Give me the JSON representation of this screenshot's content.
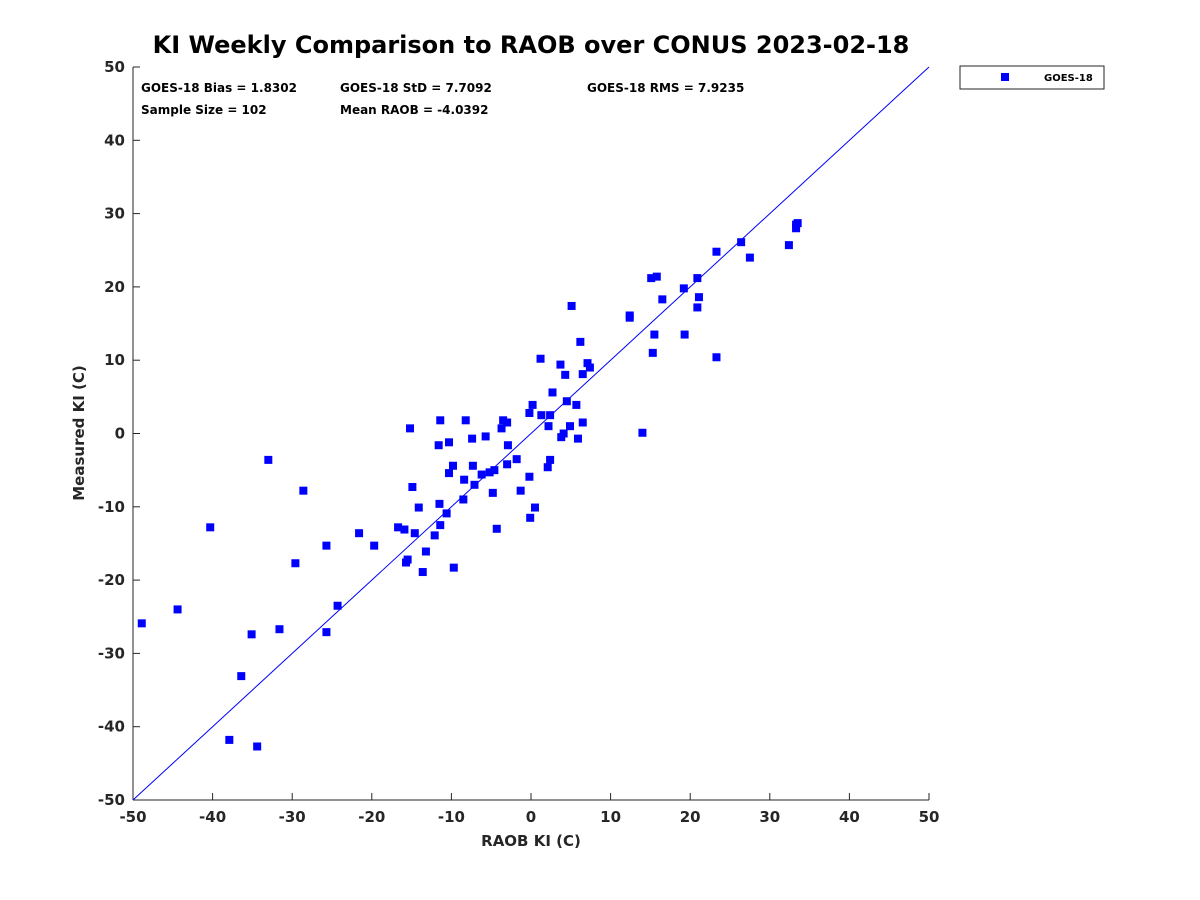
{
  "chart_data": {
    "type": "scatter",
    "title": "KI Weekly Comparison to RAOB over CONUS 2023-02-18",
    "xlabel": "RAOB KI (C)",
    "ylabel": "Measured KI (C)",
    "xlim": [
      -50,
      50
    ],
    "ylim": [
      -50,
      50
    ],
    "xticks": [
      "-50",
      "-40",
      "-30",
      "-20",
      "-10",
      "0",
      "10",
      "20",
      "30",
      "40",
      "50"
    ],
    "yticks": [
      "50",
      "40",
      "30",
      "20",
      "10",
      "0",
      "-10",
      "-20",
      "-30",
      "-40",
      "-50"
    ],
    "reference_line": {
      "name": "1:1 line",
      "from": [
        -50,
        -50
      ],
      "to": [
        50,
        50
      ]
    },
    "stats": {
      "bias": "GOES-18 Bias = 1.8302",
      "std": "GOES-18 StD = 7.7092",
      "rms": "GOES-18 RMS = 7.9235",
      "sample": "Sample Size = 102",
      "mean": "Mean RAOB = -4.0392"
    },
    "legend": {
      "label": "GOES-18",
      "position": "top-right outside"
    },
    "series": [
      {
        "name": "GOES-18",
        "color": "#0000ff",
        "marker": "square",
        "points": [
          [
            -48.9,
            -25.9
          ],
          [
            -44.4,
            -24.0
          ],
          [
            -40.3,
            -12.8
          ],
          [
            -37.9,
            -41.8
          ],
          [
            -36.4,
            -33.1
          ],
          [
            -35.1,
            -27.4
          ],
          [
            -34.4,
            -42.7
          ],
          [
            -33.0,
            -3.6
          ],
          [
            -31.6,
            -26.7
          ],
          [
            -29.6,
            -17.7
          ],
          [
            -28.6,
            -7.8
          ],
          [
            -25.7,
            -15.3
          ],
          [
            -25.7,
            -27.1
          ],
          [
            -24.3,
            -23.5
          ],
          [
            -21.6,
            -13.6
          ],
          [
            -19.7,
            -15.3
          ],
          [
            -16.7,
            -12.8
          ],
          [
            -15.9,
            -13.1
          ],
          [
            -15.7,
            -17.6
          ],
          [
            -15.5,
            -17.2
          ],
          [
            -15.2,
            0.7
          ],
          [
            -14.9,
            -7.3
          ],
          [
            -14.6,
            -13.6
          ],
          [
            -14.1,
            -10.1
          ],
          [
            -13.6,
            -18.9
          ],
          [
            -13.2,
            -16.1
          ],
          [
            -12.1,
            -13.9
          ],
          [
            -11.6,
            -1.6
          ],
          [
            -11.5,
            -9.6
          ],
          [
            -11.4,
            -12.5
          ],
          [
            -11.4,
            1.8
          ],
          [
            -10.6,
            -10.9
          ],
          [
            -10.3,
            -5.4
          ],
          [
            -10.3,
            -1.2
          ],
          [
            -9.8,
            -4.4
          ],
          [
            -9.7,
            -18.3
          ],
          [
            -8.5,
            -9.0
          ],
          [
            -8.4,
            -6.3
          ],
          [
            -8.2,
            1.8
          ],
          [
            -7.4,
            -0.7
          ],
          [
            -7.3,
            -4.4
          ],
          [
            -7.1,
            -7.0
          ],
          [
            -6.2,
            -5.6
          ],
          [
            -5.7,
            -0.4
          ],
          [
            -5.2,
            -5.3
          ],
          [
            -4.8,
            -8.1
          ],
          [
            -4.6,
            -5.0
          ],
          [
            -4.3,
            -13.0
          ],
          [
            -3.7,
            0.7
          ],
          [
            -3.5,
            1.8
          ],
          [
            -3.0,
            1.5
          ],
          [
            -3.0,
            -4.2
          ],
          [
            -2.9,
            -1.6
          ],
          [
            -1.8,
            -3.5
          ],
          [
            -1.3,
            -7.8
          ],
          [
            -0.2,
            -5.9
          ],
          [
            -0.2,
            2.8
          ],
          [
            -0.1,
            -11.5
          ],
          [
            0.2,
            3.9
          ],
          [
            0.5,
            -10.1
          ],
          [
            1.2,
            10.2
          ],
          [
            1.3,
            2.5
          ],
          [
            2.1,
            -4.6
          ],
          [
            2.2,
            1.0
          ],
          [
            2.4,
            -3.6
          ],
          [
            2.4,
            2.5
          ],
          [
            2.7,
            5.6
          ],
          [
            3.7,
            9.4
          ],
          [
            3.8,
            -0.5
          ],
          [
            4.1,
            0.0
          ],
          [
            4.3,
            8.0
          ],
          [
            4.5,
            4.4
          ],
          [
            4.9,
            1.0
          ],
          [
            5.1,
            17.4
          ],
          [
            5.7,
            3.9
          ],
          [
            5.9,
            -0.7
          ],
          [
            6.2,
            12.5
          ],
          [
            6.5,
            1.5
          ],
          [
            6.5,
            8.1
          ],
          [
            7.1,
            9.6
          ],
          [
            7.4,
            9.0
          ],
          [
            12.4,
            16.1
          ],
          [
            12.4,
            15.8
          ],
          [
            14.0,
            0.1
          ],
          [
            15.1,
            21.2
          ],
          [
            15.3,
            11.0
          ],
          [
            15.5,
            13.5
          ],
          [
            15.8,
            21.4
          ],
          [
            16.5,
            18.3
          ],
          [
            19.2,
            19.8
          ],
          [
            19.3,
            13.5
          ],
          [
            20.9,
            21.2
          ],
          [
            20.9,
            17.2
          ],
          [
            21.1,
            18.6
          ],
          [
            23.3,
            10.4
          ],
          [
            23.3,
            24.8
          ],
          [
            26.4,
            26.1
          ],
          [
            27.5,
            24.0
          ],
          [
            32.4,
            25.7
          ],
          [
            33.3,
            28.5
          ],
          [
            33.3,
            28.0
          ],
          [
            33.5,
            28.7
          ]
        ]
      }
    ]
  }
}
